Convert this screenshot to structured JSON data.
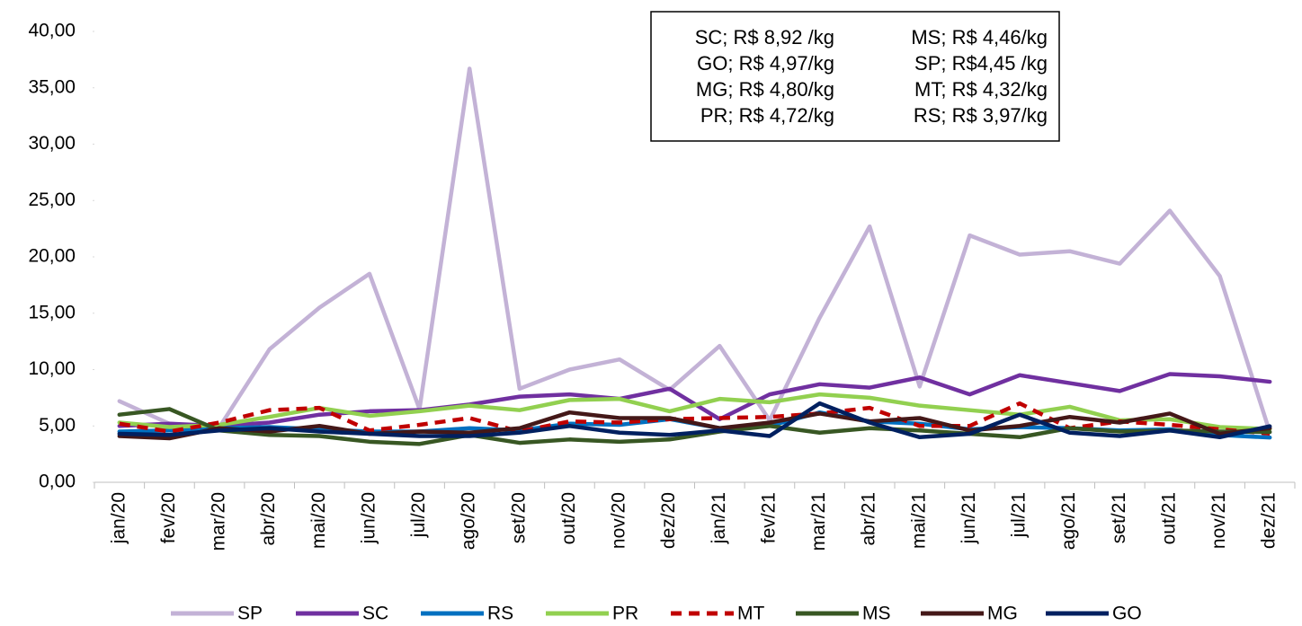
{
  "chart_data": {
    "type": "line",
    "categories": [
      "jan/20",
      "fev/20",
      "mar/20",
      "abr/20",
      "mai/20",
      "jun/20",
      "jul/20",
      "ago/20",
      "set/20",
      "out/20",
      "nov/20",
      "dez/20",
      "jan/21",
      "fev/21",
      "mar/21",
      "abr/21",
      "mai/21",
      "jun/21",
      "jul/21",
      "ago/21",
      "set/21",
      "out/21",
      "nov/21",
      "dez/21"
    ],
    "ylim": [
      0,
      40
    ],
    "yticks": [
      {
        "value": 0,
        "label": "0,00"
      },
      {
        "value": 5,
        "label": "5,00"
      },
      {
        "value": 10,
        "label": "10,00"
      },
      {
        "value": 15,
        "label": "15,00"
      },
      {
        "value": 20,
        "label": "20,00"
      },
      {
        "value": 25,
        "label": "25,00"
      },
      {
        "value": 30,
        "label": "30,00"
      },
      {
        "value": 35,
        "label": "35,00"
      },
      {
        "value": 40,
        "label": "40,00"
      }
    ],
    "annotations": [
      [
        "SC; R$ 8,92 /kg",
        "MS; R$ 4,46/kg"
      ],
      [
        "GO; R$ 4,97/kg",
        "SP; R$4,45 /kg"
      ],
      [
        "MG; R$ 4,80/kg",
        "MT; R$ 4,32/kg"
      ],
      [
        "PR; R$ 4,72/kg",
        "RS; R$ 3,97/kg"
      ]
    ],
    "series": [
      {
        "name": "SP",
        "color": "#c3b2d6",
        "dashed": false,
        "values": [
          7.2,
          5.2,
          4.9,
          11.8,
          15.5,
          18.5,
          6.5,
          36.7,
          8.3,
          10.0,
          10.9,
          8.2,
          12.1,
          5.5,
          14.6,
          22.7,
          8.5,
          21.9,
          20.2,
          20.5,
          19.4,
          24.1,
          18.3,
          4.45
        ]
      },
      {
        "name": "SC",
        "color": "#7030a0",
        "dashed": false,
        "values": [
          5.0,
          5.2,
          5.0,
          5.3,
          6.0,
          6.3,
          6.4,
          6.9,
          7.6,
          7.8,
          7.4,
          8.3,
          5.6,
          7.8,
          8.7,
          8.4,
          9.3,
          7.8,
          9.5,
          8.8,
          8.1,
          9.6,
          9.4,
          8.92
        ]
      },
      {
        "name": "RS",
        "color": "#0070c0",
        "dashed": false,
        "values": [
          4.5,
          4.6,
          4.8,
          4.9,
          4.7,
          4.5,
          4.5,
          4.8,
          4.6,
          5.2,
          5.1,
          5.6,
          4.8,
          5.0,
          6.2,
          5.4,
          5.2,
          4.7,
          4.9,
          4.8,
          4.6,
          4.7,
          4.2,
          3.97
        ]
      },
      {
        "name": "PR",
        "color": "#92d050",
        "dashed": false,
        "values": [
          5.3,
          4.9,
          5.1,
          5.8,
          6.6,
          5.9,
          6.3,
          6.8,
          6.4,
          7.3,
          7.4,
          6.3,
          7.4,
          7.1,
          7.8,
          7.5,
          6.8,
          6.4,
          6.0,
          6.7,
          5.5,
          5.6,
          4.9,
          4.72
        ]
      },
      {
        "name": "MT",
        "color": "#c00000",
        "dashed": true,
        "values": [
          5.2,
          4.5,
          5.3,
          6.4,
          6.6,
          4.6,
          5.1,
          5.7,
          4.5,
          5.4,
          5.3,
          5.6,
          5.7,
          5.8,
          6.1,
          6.6,
          5.0,
          5.0,
          7.0,
          4.8,
          5.4,
          5.1,
          4.7,
          4.32
        ]
      },
      {
        "name": "MS",
        "color": "#385723",
        "dashed": false,
        "values": [
          6.0,
          6.5,
          4.6,
          4.2,
          4.1,
          3.6,
          3.4,
          4.2,
          3.5,
          3.8,
          3.6,
          3.8,
          4.5,
          5.0,
          4.4,
          4.8,
          4.6,
          4.3,
          4.0,
          4.8,
          4.5,
          4.6,
          4.5,
          4.46
        ]
      },
      {
        "name": "MG",
        "color": "#441818",
        "dashed": false,
        "values": [
          4.1,
          3.9,
          4.8,
          4.5,
          5.0,
          4.3,
          4.5,
          4.4,
          4.8,
          6.2,
          5.7,
          5.7,
          4.8,
          5.3,
          6.1,
          5.4,
          5.7,
          4.6,
          5.0,
          5.8,
          5.3,
          6.1,
          4.3,
          4.8
        ]
      },
      {
        "name": "GO",
        "color": "#002060",
        "dashed": false,
        "values": [
          4.3,
          4.2,
          4.6,
          4.8,
          4.5,
          4.3,
          4.1,
          4.1,
          4.4,
          5.0,
          4.4,
          4.2,
          4.6,
          4.1,
          7.0,
          5.3,
          4.0,
          4.3,
          6.0,
          4.4,
          4.1,
          4.6,
          4.0,
          4.97
        ]
      }
    ]
  }
}
